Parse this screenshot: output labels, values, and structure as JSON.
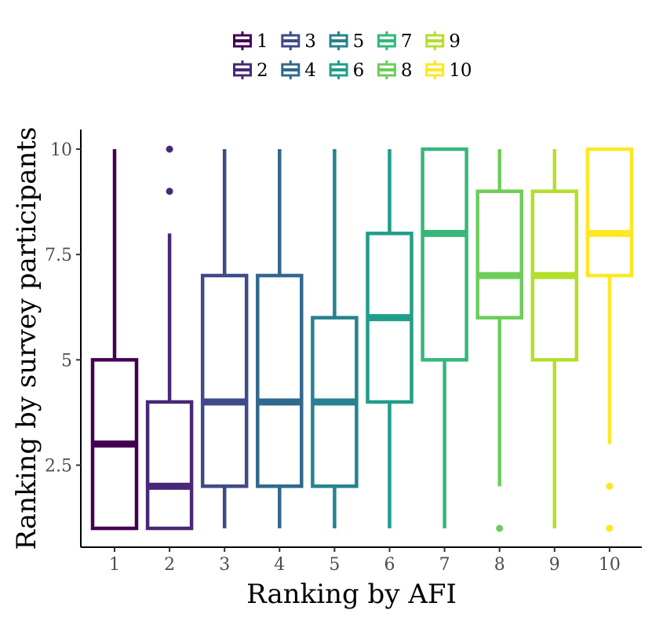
{
  "chart_data": {
    "type": "boxplot",
    "xlabel": "Ranking by AFI",
    "ylabel": "Ranking by survey participants",
    "ylim": [
      0.55,
      10.45
    ],
    "y_ticks": [
      2.5,
      5,
      7.5,
      10
    ],
    "y_tick_labels": [
      "2.5",
      "5",
      "7.5",
      "10"
    ],
    "grid": false,
    "legend_position": "top",
    "categories": [
      "1",
      "2",
      "3",
      "4",
      "5",
      "6",
      "7",
      "8",
      "9",
      "10"
    ],
    "colors": [
      "#440154",
      "#482878",
      "#3E4A89",
      "#31688E",
      "#26828E",
      "#1F9E89",
      "#35B779",
      "#6DCD59",
      "#B4DE2C",
      "#FDE725"
    ],
    "boxes": [
      {
        "category": "1",
        "min": 1,
        "q1": 1,
        "median": 3,
        "q3": 5,
        "max": 10,
        "outliers": []
      },
      {
        "category": "2",
        "min": 1,
        "q1": 1,
        "median": 2,
        "q3": 4,
        "max": 8,
        "outliers": [
          9,
          10
        ]
      },
      {
        "category": "3",
        "min": 1,
        "q1": 2,
        "median": 4,
        "q3": 7,
        "max": 10,
        "outliers": []
      },
      {
        "category": "4",
        "min": 1,
        "q1": 2,
        "median": 4,
        "q3": 7,
        "max": 10,
        "outliers": []
      },
      {
        "category": "5",
        "min": 1,
        "q1": 2,
        "median": 4,
        "q3": 6,
        "max": 10,
        "outliers": []
      },
      {
        "category": "6",
        "min": 1,
        "q1": 4,
        "median": 6,
        "q3": 8,
        "max": 10,
        "outliers": []
      },
      {
        "category": "7",
        "min": 1,
        "q1": 5,
        "median": 8,
        "q3": 10,
        "max": 10,
        "outliers": []
      },
      {
        "category": "8",
        "min": 2,
        "q1": 6,
        "median": 7,
        "q3": 9,
        "max": 10,
        "outliers": [
          1
        ]
      },
      {
        "category": "9",
        "min": 1,
        "q1": 5,
        "median": 7,
        "q3": 9,
        "max": 10,
        "outliers": []
      },
      {
        "category": "10",
        "min": 3,
        "q1": 7,
        "median": 8,
        "q3": 10,
        "max": 10,
        "outliers": [
          1,
          2
        ]
      }
    ],
    "legend": {
      "entries": [
        "1",
        "2",
        "3",
        "4",
        "5",
        "6",
        "7",
        "8",
        "9",
        "10"
      ]
    }
  }
}
